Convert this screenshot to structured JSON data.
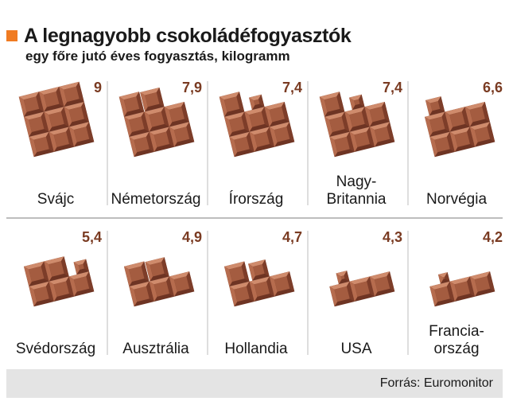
{
  "header": {
    "title": "A legnagyobb csokoládéfogyasztók",
    "subtitle": "egy főre jutó éves fogyasztás, kilogramm"
  },
  "footer": {
    "source": "Forrás: Euromonitor"
  },
  "colors": {
    "accent": "#f07b22",
    "value_text": "#7a3b22",
    "chocolate_face": "#a45c40",
    "chocolate_dark": "#6e3423",
    "chocolate_light": "#cf8b6c",
    "divider": "#bdbdbd",
    "footer_bg": "#e4e4e4"
  },
  "chart_data": {
    "type": "pictogram",
    "unit": "kilogramm",
    "max_pieces": 9,
    "items": [
      {
        "label": "Svájc",
        "value": 9,
        "value_label": "9",
        "pieces": 9
      },
      {
        "label": "Németország",
        "value": 7.9,
        "value_label": "7,9",
        "pieces": 8
      },
      {
        "label": "Írország",
        "value": 7.4,
        "value_label": "7,4",
        "pieces": 8
      },
      {
        "label": "Nagy-\nBritannia",
        "value": 7.4,
        "value_label": "7,4",
        "pieces": 8
      },
      {
        "label": "Norvégia",
        "value": 6.6,
        "value_label": "6,6",
        "pieces": 7
      },
      {
        "label": "Svédország",
        "value": 5.4,
        "value_label": "5,4",
        "pieces": 6
      },
      {
        "label": "Ausztrália",
        "value": 4.9,
        "value_label": "4,9",
        "pieces": 5
      },
      {
        "label": "Hollandia",
        "value": 4.7,
        "value_label": "4,7",
        "pieces": 5
      },
      {
        "label": "USA",
        "value": 4.3,
        "value_label": "4,3",
        "pieces": 4
      },
      {
        "label": "Francia-\nország",
        "value": 4.2,
        "value_label": "4,2",
        "pieces": 4
      }
    ]
  }
}
